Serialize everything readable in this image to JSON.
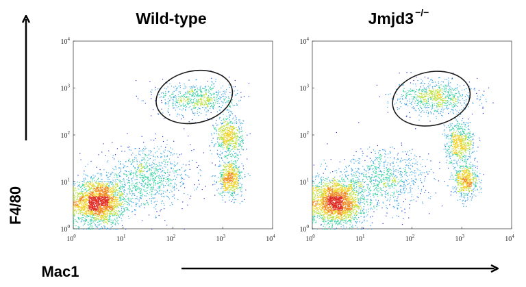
{
  "chart_data": {
    "type": "scatter",
    "style": "flow-cytometry density dot plot (pseudocolor)",
    "xlabel": "Mac1",
    "ylabel": "F4/80",
    "xscale": "log",
    "yscale": "log",
    "xlim": [
      1,
      10000
    ],
    "ylim": [
      1,
      10000
    ],
    "tick_values": [
      1,
      10,
      100,
      1000,
      10000
    ],
    "tick_bases": [
      "10",
      "10",
      "10",
      "10",
      "10"
    ],
    "tick_exponents": [
      "0",
      "1",
      "2",
      "3",
      "4"
    ],
    "grid": false,
    "colormap": [
      "#1a2fd6",
      "#2fa0e6",
      "#30d0a0",
      "#b8e03a",
      "#f0d020",
      "#f08a20",
      "#e02a20"
    ],
    "panels": [
      {
        "title": "Wild-type",
        "title_superscript": "",
        "gate": {
          "center_x": 280,
          "center_y": 620,
          "x_range": [
            45,
            1600
          ],
          "y_range": [
            180,
            2300
          ]
        },
        "populations": [
          {
            "center_x": 3.2,
            "center_y": 3.8,
            "weight": 0.45
          },
          {
            "center_x": 30,
            "center_y": 12,
            "weight": 0.18
          },
          {
            "center_x": 1300,
            "center_y": 90,
            "weight": 0.12
          },
          {
            "center_x": 1400,
            "center_y": 12,
            "weight": 0.12
          },
          {
            "center_x": 300,
            "center_y": 600,
            "weight": 0.13
          }
        ]
      },
      {
        "title": "Jmjd3",
        "title_superscript": "−/−",
        "gate": {
          "center_x": 240,
          "center_y": 560,
          "x_range": [
            40,
            1500
          ],
          "y_range": [
            160,
            2200
          ]
        },
        "populations": [
          {
            "center_x": 3.0,
            "center_y": 3.8,
            "weight": 0.45
          },
          {
            "center_x": 28,
            "center_y": 11,
            "weight": 0.17
          },
          {
            "center_x": 900,
            "center_y": 70,
            "weight": 0.12
          },
          {
            "center_x": 1200,
            "center_y": 11,
            "weight": 0.11
          },
          {
            "center_x": 300,
            "center_y": 650,
            "weight": 0.15
          }
        ]
      }
    ]
  }
}
